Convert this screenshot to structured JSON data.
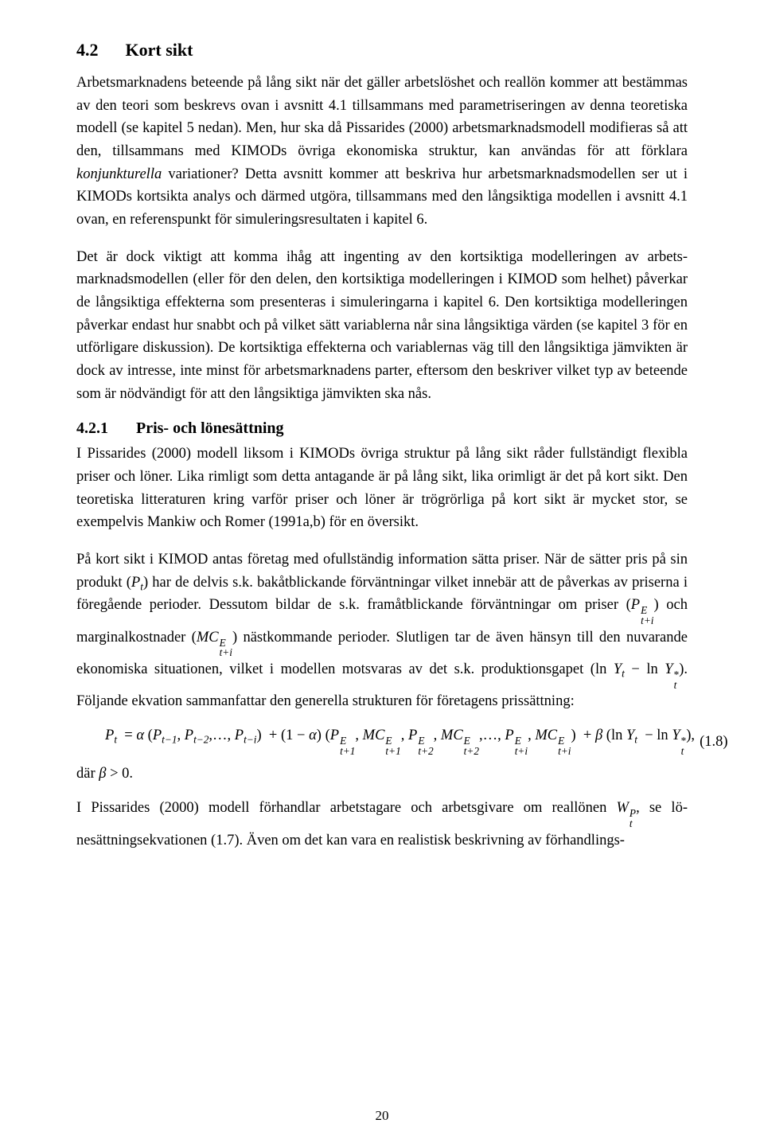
{
  "typography": {
    "font_family": "Times New Roman",
    "body_fontsize_pt": 14,
    "heading_fontsize_pt": 16,
    "line_height": 1.55,
    "text_color": "#000000",
    "background_color": "#ffffff"
  },
  "section": {
    "number": "4.2",
    "title": "Kort sikt"
  },
  "paragraphs": {
    "p1_a": "Arbetsmarknadens beteende på lång sikt när det gäller arbetslöshet och reallön kommer att bestämmas av den teori som beskrevs ovan i avsnitt 4.1 tillsammans med parametriseringen av denna teoretiska modell (se kapitel 5 nedan). Men, hur ska då Pissarides (2000) arbets­marknadsmodell modifieras så att den, tillsammans med KIMODs övriga ekonomiska struk­tur, kan användas för att förklara ",
    "p1_ital": "konjunkturella",
    "p1_b": " variationer? Detta avsnitt kommer att beskri­va hur arbetsmarknadsmodellen ser ut i KIMODs kortsikta analys och därmed utgöra, till­sammans med den långsiktiga modellen i avsnitt 4.1 ovan, en referenspunkt för simulerings­resultaten i kapitel 6.",
    "p2": "Det är dock viktigt att komma ihåg att ingenting av den kortsiktiga modelleringen av arbets­marknadsmodellen (eller för den delen, den kortsiktiga modelleringen i KIMOD som helhet) påverkar de långsiktiga effekterna som presenteras i simuleringarna i kapitel 6. Den kortsikti­ga modelleringen påverkar endast hur snabbt och på vilket sätt variablerna når sina långsiktiga värden (se kapitel 3 för en utförligare diskussion). De kortsiktiga effekterna och variablernas väg till den långsiktiga jämvikten är dock av intresse, inte minst för arbetsmarknadens parter, eftersom den beskriver vilket typ av beteende som är nödvändigt för att den långsiktiga jäm­vikten ska nås."
  },
  "subsection": {
    "number": "4.2.1",
    "title": "Pris- och lönesättning"
  },
  "sub_paragraphs": {
    "s1": "I Pissarides (2000) modell liksom i KIMODs övriga struktur på lång sikt råder fullständigt flexibla priser och löner. Lika rimligt som detta antagande är på lång sikt, lika orimligt är det på kort sikt. Den teoretiska litteraturen kring varför priser och löner är trögrörliga på kort sikt är mycket stor, se exempelvis Mankiw och Romer (1991a,b) för en översikt.",
    "s2_a": "På kort sikt i KIMOD antas företag med ofullständig information sätta priser. När de sätter pris på sin produkt (",
    "s2_b": ") har de delvis s.k. bakåtblickande förväntningar vilket innebär att de påverkas av priserna i föregående perioder. Dessutom bildar de s.k. framåtblickande förvänt­ningar om priser (",
    "s2_c": ") och marginalkostnader (",
    "s2_d": ") nästkommande perioder. Slutligen tar de även hänsyn till den nuvarande ekonomiska situationen, vilket i modellen motsvaras av det s.k. produktionsgapet (",
    "s2_e": "). Följande ekvation sammanfattar den generella strukturen för företagens prissättning:"
  },
  "math_symbols": {
    "P": "P",
    "MC": "MC",
    "Y": "Y",
    "W": "W",
    "t": "t",
    "E": "E",
    "i": "i",
    "star": "*",
    "ln": "ln",
    "alpha": "α",
    "beta": "β",
    "minus": "−",
    "plus": "+",
    "eq": "=",
    "gt": ">",
    "zero": "0",
    "one": "1",
    "Psup": "P"
  },
  "equation": {
    "number": "(1.8)",
    "where_prefix": "där ",
    "where_suffix": "."
  },
  "closing": {
    "c1_a": "I Pissarides (2000) modell förhandlar arbetstagare och arbetsgivare om reallönen ",
    "c1_b": ", se lö­nesättningsekvationen (1.7). Även om det kan vara en realistisk beskrivning av förhandlings-"
  },
  "page_number": "20"
}
